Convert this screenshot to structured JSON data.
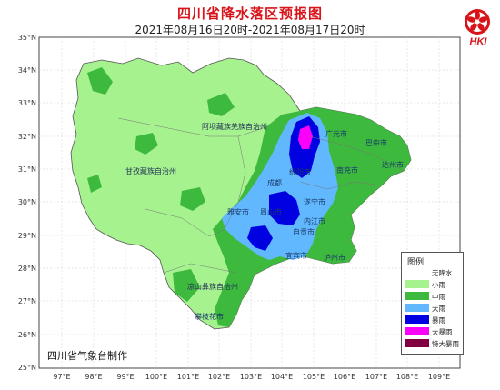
{
  "header": {
    "title": "四川省降水落区预报图",
    "subtitle": "2021年08月16日20时-2021年08月17日20时",
    "logo_text": "HKI"
  },
  "credit": "四川省气象台制作",
  "axes": {
    "lat_ticks": [
      "35°N",
      "34°N",
      "33°N",
      "32°N",
      "31°N",
      "30°N",
      "29°N",
      "28°N",
      "27°N",
      "26°N",
      "25°N"
    ],
    "lon_ticks": [
      "97°E",
      "98°E",
      "99°E",
      "100°E",
      "101°E",
      "102°E",
      "103°E",
      "104°E",
      "105°E",
      "106°E",
      "107°E",
      "108°E",
      "109°E"
    ]
  },
  "regions": {
    "aba": "阿坝藏族羌族自治州",
    "ganzi": "甘孜藏族自治州",
    "liangshan": "凉山彝族自治州"
  },
  "cities": {
    "guangyuan": "广元市",
    "bazhong": "巴中市",
    "mianyang": "绵阳市",
    "nanchong": "南充市",
    "dazhou": "达州市",
    "chengdu": "成都",
    "yaan": "雅安市",
    "meishan": "眉山市",
    "neijiang": "内江市",
    "suining": "遂宁市",
    "zigong": "自贡市",
    "yibin": "宜宾市",
    "luzhou": "泸州市",
    "panzhihua": "攀枝花市"
  },
  "legend": {
    "title": "图例",
    "items": [
      {
        "label": "无降水",
        "color": "#ffffff"
      },
      {
        "label": "小雨",
        "color": "#a6f28f"
      },
      {
        "label": "中雨",
        "color": "#3dba3d"
      },
      {
        "label": "大雨",
        "color": "#61b8ff"
      },
      {
        "label": "暴雨",
        "color": "#0000e1"
      },
      {
        "label": "大暴雨",
        "color": "#fa00fa"
      },
      {
        "label": "特大暴雨",
        "color": "#800040"
      }
    ]
  }
}
